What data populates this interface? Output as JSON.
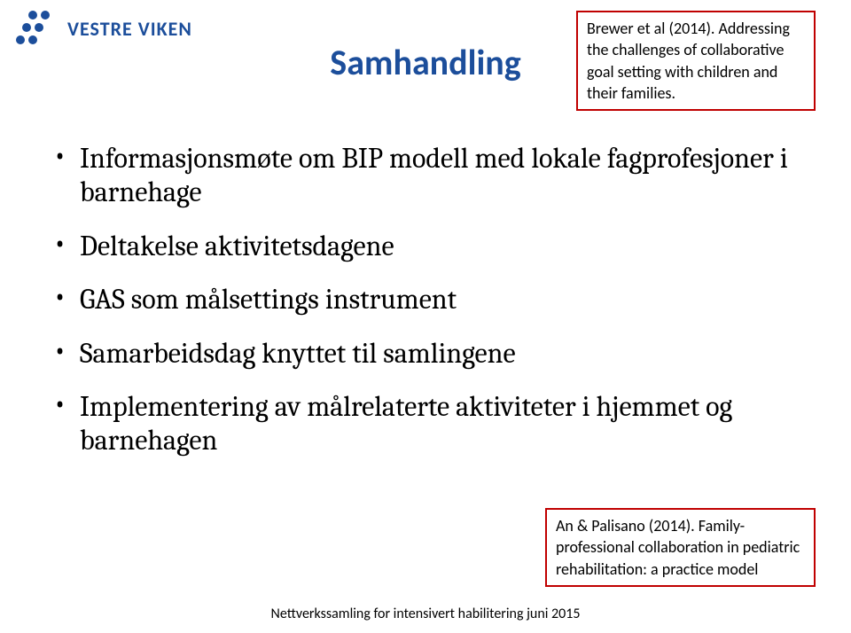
{
  "logo": {
    "text": "VESTRE VIKEN",
    "color": "#1c4e9b",
    "fontsize": 22
  },
  "title": {
    "text": "Samhandling",
    "color": "#1c4e9b",
    "fontsize": 40
  },
  "citation_top": {
    "text": "Brewer et al (2014). Addressing the challenges of collaborative goal setting with children and their families.",
    "border_color": "#c00000",
    "fontsize": 18
  },
  "citation_bottom": {
    "text": "An & Palisano (2014). Family-professional collaboration in pediatric rehabilitation: a practice model",
    "border_color": "#c00000",
    "fontsize": 18
  },
  "bullets": {
    "fontsize": 32,
    "font_family": "Cambria, Georgia, serif",
    "color": "#000000",
    "items": [
      "Informasjonsmøte  om BIP modell med lokale fagprofesjoner i barnehage",
      "Deltakelse aktivitetsdagene",
      "GAS som målsettings instrument",
      "Samarbeidsdag knyttet til samlingene",
      "Implementering av målrelaterte aktiviteter i hjemmet og  barnehagen"
    ]
  },
  "footer": {
    "text": "Nettverkssamling for intensivert habilitering juni 2015",
    "fontsize": 16,
    "color": "#000000"
  }
}
